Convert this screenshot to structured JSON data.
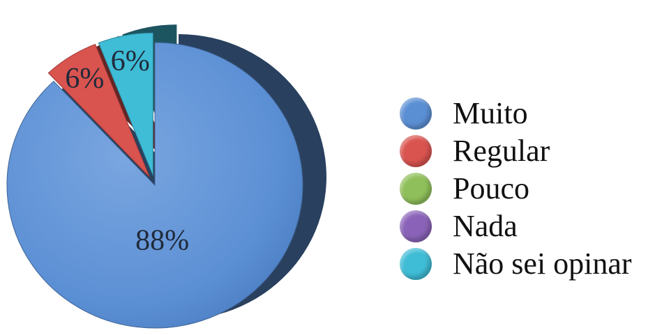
{
  "chart_data": {
    "type": "pie",
    "title": "",
    "slices": [
      {
        "name": "Muito",
        "value": 88,
        "label": "88%",
        "color": "#5b8fd4"
      },
      {
        "name": "Regular",
        "value": 6,
        "label": "6%",
        "color": "#d9534f"
      },
      {
        "name": "Pouco",
        "value": 0,
        "label": "",
        "color": "#8fbf5a"
      },
      {
        "name": "Nada",
        "value": 0,
        "label": "",
        "color": "#8a63b8"
      },
      {
        "name": "Não sei opinar",
        "value": 6,
        "label": "6%",
        "color": "#3fbcd6"
      }
    ],
    "legend_position": "right",
    "exploded": true,
    "style": "3d"
  }
}
